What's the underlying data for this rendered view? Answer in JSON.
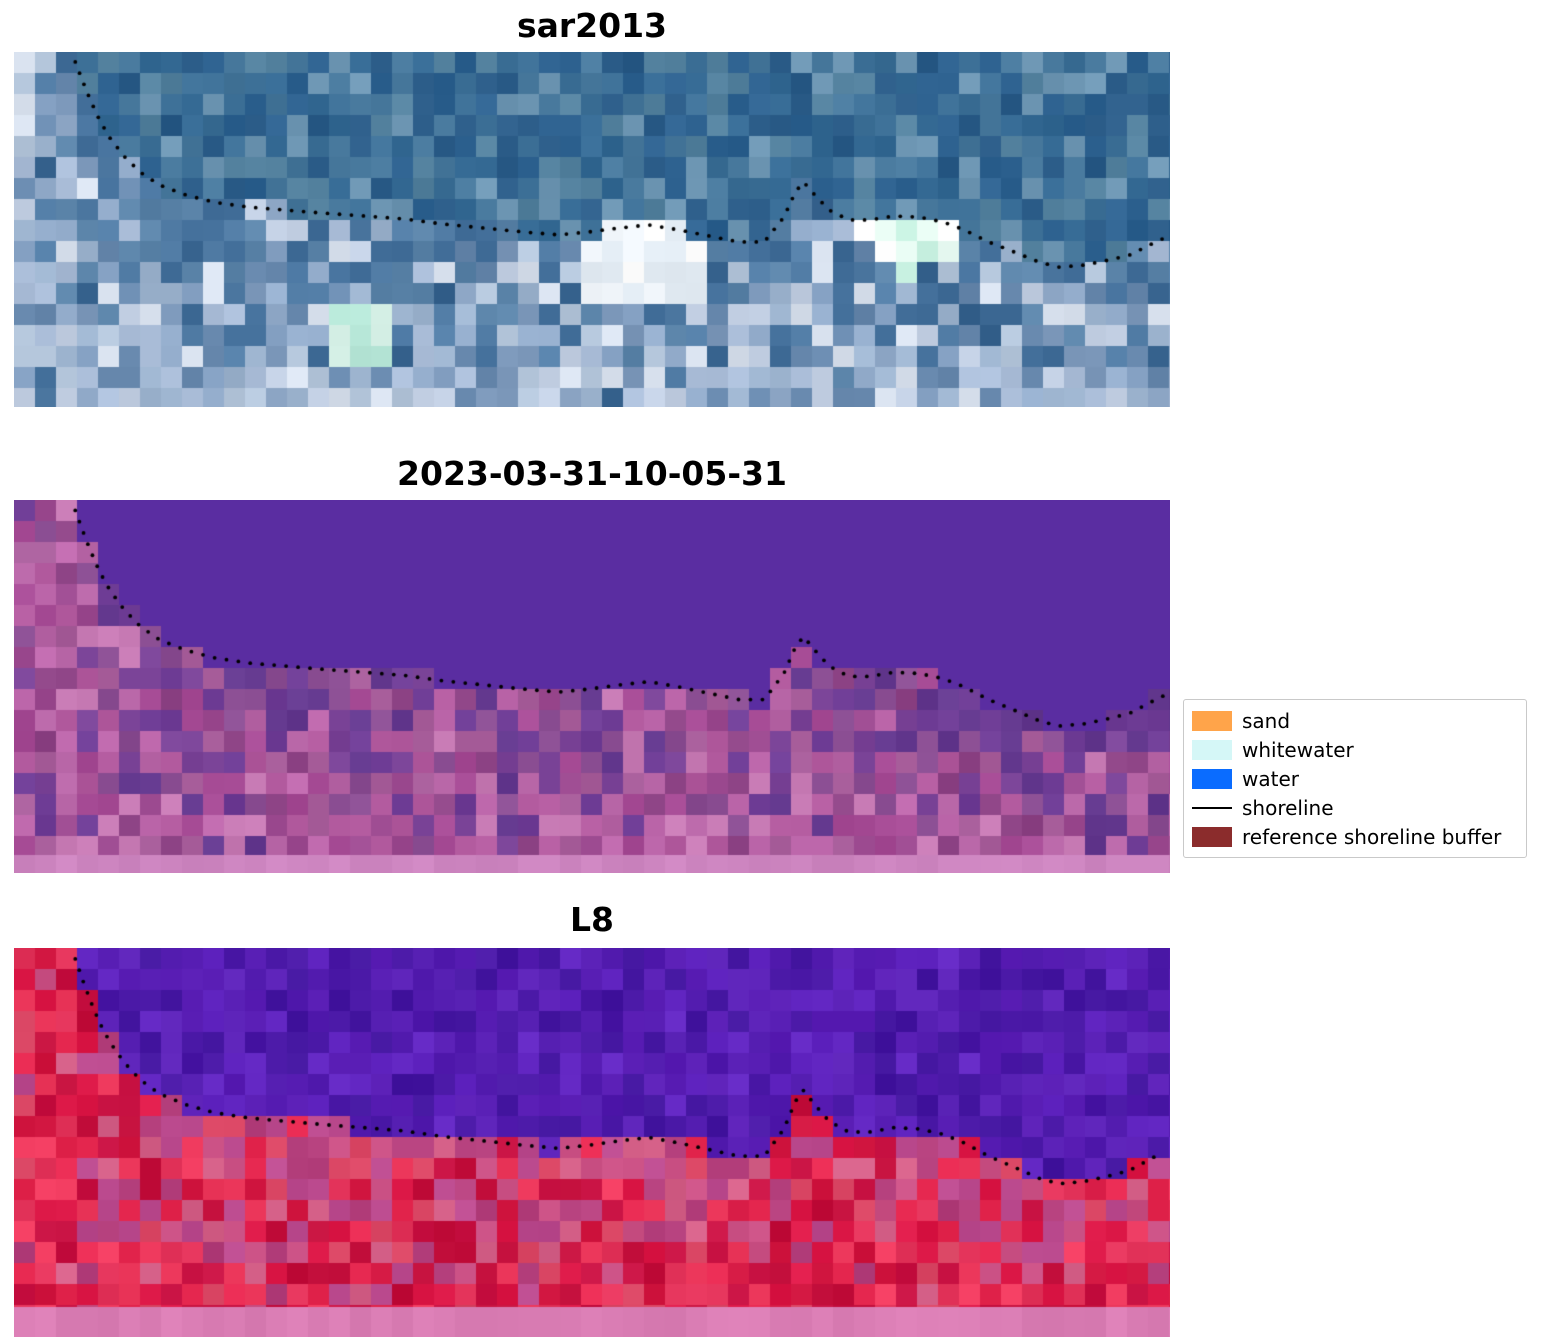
{
  "chart_data": {
    "type": "heatmap",
    "description": "Three stacked coastal satellite image panels with detected shoreline points overlaid as black dots",
    "panels": [
      {
        "title": "sar2013",
        "kind": "sar-satellite-composite",
        "render": {
          "seed": 11,
          "cell": 21,
          "water": [
            "#2e6290",
            "#356a94",
            "#2b5c88",
            "#3d7097",
            "#47789c",
            "#54829f",
            "#6d96b3"
          ],
          "water_jitter": 9,
          "land": [
            "#7e9abc",
            "#93accb",
            "#aabdd8",
            "#c2cfe3",
            "#d8e1ee",
            "#6889ae",
            "#b3c5da",
            "#9db4cf"
          ],
          "land_dark": [
            "#45719c",
            "#527da6",
            "#3a6691",
            "#5b84a9"
          ],
          "dark_bias": 0.75,
          "land_jitter": 10,
          "clusters": [
            {
              "x": 0.545,
              "y": 0.58,
              "rx": 0.06,
              "ry": 0.16,
              "colors": [
                "#ffffff",
                "#f0f5fa",
                "#e2ebf3"
              ]
            },
            {
              "x": 0.775,
              "y": 0.5,
              "rx": 0.04,
              "ry": 0.13,
              "colors": [
                "#e8fbf3",
                "#c8f1e1",
                "#9ce5cd",
                "#ffffff"
              ]
            },
            {
              "x": 0.3,
              "y": 0.8,
              "rx": 0.035,
              "ry": 0.09,
              "colors": [
                "#b7e7d8",
                "#d6f1e7"
              ]
            }
          ],
          "strip": null
        }
      },
      {
        "title": "2023-03-31-10-05-31",
        "kind": "classified-scene",
        "render": {
          "seed": 23,
          "cell": 21,
          "water": [
            "#5a2da1"
          ],
          "water_jitter": 0,
          "land": [
            "#a64b95",
            "#b25a9e",
            "#9c4a90",
            "#c06aae",
            "#8e4486",
            "#b765a6",
            "#a85e9b",
            "#c77ab4"
          ],
          "land_dark": [
            "#6f3d96",
            "#7b4498",
            "#64398f",
            "#8a4d92"
          ],
          "dark_bias": 0.8,
          "land_jitter": 8,
          "clusters": [],
          "strip": {
            "color": "#cd85c0",
            "height": 18
          }
        }
      },
      {
        "title": "L8",
        "kind": "landsat-8-false-color",
        "render": {
          "seed": 37,
          "cell": 21,
          "water": [
            "#5a1eb5",
            "#521bae",
            "#6226c2",
            "#4a18a6",
            "#5c22b8",
            "#4416a0"
          ],
          "water_jitter": 7,
          "land": [
            "#dc1847",
            "#d0153f",
            "#e62850",
            "#c81243",
            "#ef3a5e",
            "#d94563",
            "#c30f3c",
            "#e5355c"
          ],
          "land_dark": [
            "#c94f83",
            "#bb4a8e",
            "#d45f87",
            "#b43f7c"
          ],
          "dark_bias": 0.65,
          "land_jitter": 9,
          "clusters": [],
          "strip": {
            "color": "#da7db4",
            "height": 30
          }
        }
      }
    ],
    "legend": {
      "items": [
        {
          "label": "sand",
          "swatch": "rect",
          "color": "#ffa44a"
        },
        {
          "label": "whitewater",
          "swatch": "rect",
          "color": "#d5f7f7"
        },
        {
          "label": "water",
          "swatch": "rect",
          "color": "#0a6cff"
        },
        {
          "label": "shoreline",
          "swatch": "line",
          "color": "#000000"
        },
        {
          "label": "reference shoreline buffer",
          "swatch": "rect",
          "color": "#8b2c2c"
        }
      ]
    },
    "shoreline": {
      "marker": "black dotted points",
      "dot_spacing_px": 12,
      "dot_radius_px": 1.9,
      "points_normalized": [
        [
          0.053,
          0.028
        ],
        [
          0.059,
          0.079
        ],
        [
          0.066,
          0.135
        ],
        [
          0.074,
          0.192
        ],
        [
          0.083,
          0.242
        ],
        [
          0.095,
          0.293
        ],
        [
          0.109,
          0.338
        ],
        [
          0.126,
          0.375
        ],
        [
          0.149,
          0.403
        ],
        [
          0.173,
          0.423
        ],
        [
          0.203,
          0.437
        ],
        [
          0.234,
          0.445
        ],
        [
          0.268,
          0.454
        ],
        [
          0.303,
          0.462
        ],
        [
          0.337,
          0.47
        ],
        [
          0.372,
          0.485
        ],
        [
          0.407,
          0.496
        ],
        [
          0.441,
          0.507
        ],
        [
          0.471,
          0.515
        ],
        [
          0.497,
          0.507
        ],
        [
          0.523,
          0.496
        ],
        [
          0.549,
          0.487
        ],
        [
          0.575,
          0.501
        ],
        [
          0.601,
          0.518
        ],
        [
          0.627,
          0.535
        ],
        [
          0.649,
          0.535
        ],
        [
          0.666,
          0.465
        ],
        [
          0.676,
          0.394
        ],
        [
          0.683,
          0.366
        ],
        [
          0.692,
          0.4
        ],
        [
          0.705,
          0.445
        ],
        [
          0.722,
          0.473
        ],
        [
          0.74,
          0.473
        ],
        [
          0.761,
          0.462
        ],
        [
          0.783,
          0.465
        ],
        [
          0.804,
          0.479
        ],
        [
          0.822,
          0.501
        ],
        [
          0.843,
          0.535
        ],
        [
          0.865,
          0.563
        ],
        [
          0.887,
          0.592
        ],
        [
          0.904,
          0.606
        ],
        [
          0.926,
          0.6
        ],
        [
          0.947,
          0.586
        ],
        [
          0.965,
          0.572
        ],
        [
          0.982,
          0.544
        ],
        [
          0.995,
          0.524
        ]
      ]
    }
  }
}
